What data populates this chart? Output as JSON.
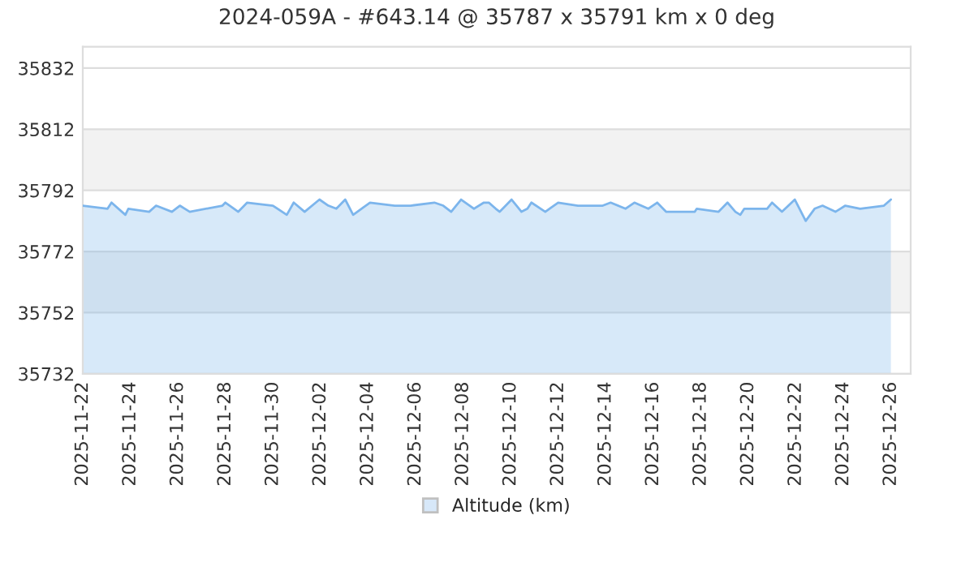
{
  "chart_data": {
    "type": "area",
    "title": "2024-059A - #643.14 @ 35787 x 35791 km x 0 deg",
    "x": [
      "2025-11-22T00:00",
      "2025-11-23T01:00",
      "2025-11-23T05:00",
      "2025-11-23T19:00",
      "2025-11-23T22:00",
      "2025-11-24T19:00",
      "2025-11-25T02:00",
      "2025-11-25T18:00",
      "2025-11-26T02:00",
      "2025-11-26T12:00",
      "2025-11-27T21:00",
      "2025-11-28T00:00",
      "2025-11-28T13:00",
      "2025-11-28T22:00",
      "2025-11-30T00:00",
      "2025-11-30T14:00",
      "2025-11-30T21:00",
      "2025-12-01T08:00",
      "2025-12-01T23:00",
      "2025-12-02T08:00",
      "2025-12-02T16:00",
      "2025-12-03T01:00",
      "2025-12-03T09:00",
      "2025-12-04T02:00",
      "2025-12-05T03:00",
      "2025-12-05T19:00",
      "2025-12-06T19:00",
      "2025-12-07T04:00",
      "2025-12-07T12:00",
      "2025-12-07T22:00",
      "2025-12-08T11:00",
      "2025-12-08T21:00",
      "2025-12-09T02:00",
      "2025-12-09T09:00",
      "2025-12-09T13:00",
      "2025-12-10T01:00",
      "2025-12-10T11:00",
      "2025-12-10T17:00",
      "2025-12-10T21:00",
      "2025-12-11T11:00",
      "2025-12-12T00:00",
      "2025-12-12T20:00",
      "2025-12-13T21:00",
      "2025-12-14T05:00",
      "2025-12-14T20:00",
      "2025-12-15T05:00",
      "2025-12-15T19:00",
      "2025-12-16T04:00",
      "2025-12-16T13:00",
      "2025-12-17T18:00",
      "2025-12-17T20:00",
      "2025-12-18T18:00",
      "2025-12-19T03:00",
      "2025-12-19T11:00",
      "2025-12-19T16:00",
      "2025-12-19T20:00",
      "2025-12-20T19:00",
      "2025-12-21T00:00",
      "2025-12-21T10:00",
      "2025-12-21T23:00",
      "2025-12-22T10:00",
      "2025-12-22T19:00",
      "2025-12-23T03:00",
      "2025-12-23T16:00",
      "2025-12-24T02:00",
      "2025-12-24T17:00",
      "2025-12-25T17:00",
      "2025-12-26T00:00"
    ],
    "series": [
      {
        "name": "Altitude (km)",
        "color": "#7cb5ec",
        "values": [
          35787,
          35786,
          35788,
          35784,
          35786,
          35785,
          35787,
          35785,
          35787,
          35785,
          35787,
          35788,
          35785,
          35788,
          35787,
          35784,
          35788,
          35785,
          35789,
          35787,
          35786,
          35789,
          35784,
          35788,
          35787,
          35787,
          35788,
          35787,
          35785,
          35789,
          35786,
          35788,
          35788,
          35786,
          35785,
          35789,
          35785,
          35786,
          35788,
          35785,
          35788,
          35787,
          35787,
          35788,
          35786,
          35788,
          35786,
          35788,
          35785,
          35785,
          35786,
          35785,
          35788,
          35785,
          35784,
          35786,
          35786,
          35788,
          35785,
          35789,
          35782,
          35786,
          35787,
          35785,
          35787,
          35786,
          35787,
          35789
        ]
      }
    ],
    "xlim": [
      "2025-11-22",
      "2025-12-26T20:00"
    ],
    "xticks": [
      "2025-11-22",
      "2025-11-24",
      "2025-11-26",
      "2025-11-28",
      "2025-11-30",
      "2025-12-02",
      "2025-12-04",
      "2025-12-06",
      "2025-12-08",
      "2025-12-10",
      "2025-12-12",
      "2025-12-14",
      "2025-12-16",
      "2025-12-18",
      "2025-12-20",
      "2025-12-22",
      "2025-12-24",
      "2025-12-26"
    ],
    "ylim": [
      35732,
      35839
    ],
    "yticks": [
      35732,
      35752,
      35772,
      35792,
      35812,
      35832
    ],
    "bands": [
      {
        "axis": "y",
        "from": 35792,
        "to": 35812,
        "color": "#f2f2f2"
      },
      {
        "axis": "y",
        "from": 35752,
        "to": 35772,
        "color": "#f2f2f2"
      }
    ],
    "grid": "y",
    "legend": "bottom"
  }
}
